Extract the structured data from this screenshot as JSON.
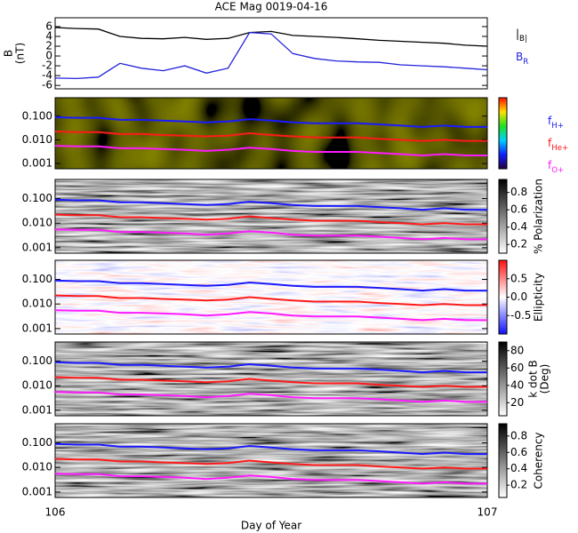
{
  "chart_data": [
    {
      "type": "line",
      "title": "ACE Mag 0019-04-16",
      "ylabel": "B",
      "ylabel_unit": "(nT)",
      "x": [
        106,
        106.05,
        106.1,
        106.15,
        106.2,
        106.25,
        106.3,
        106.35,
        106.4,
        106.45,
        106.5,
        106.55,
        106.6,
        106.65,
        106.7,
        106.75,
        106.8,
        106.85,
        106.9,
        106.95,
        107
      ],
      "xlim": [
        106,
        107
      ],
      "ylim": [
        -6.7,
        7.8
      ],
      "yticks": [
        -6,
        -4,
        -2,
        0,
        2,
        4,
        6
      ],
      "series": [
        {
          "name": "|B|",
          "color": "#000000",
          "values": [
            5.8,
            5.6,
            5.5,
            4.0,
            3.6,
            3.5,
            3.8,
            3.4,
            3.6,
            4.8,
            5.0,
            4.2,
            4.0,
            3.8,
            3.5,
            3.2,
            3.0,
            2.8,
            2.6,
            2.2,
            2.0
          ]
        },
        {
          "name": "BR",
          "color": "#2222dd",
          "values": [
            -4.5,
            -4.6,
            -4.3,
            -1.5,
            -2.5,
            -3.0,
            -2.0,
            -3.5,
            -2.5,
            4.8,
            4.5,
            0.5,
            -0.5,
            -1.0,
            -1.2,
            -1.3,
            -1.8,
            -2.0,
            -2.2,
            -2.5,
            -2.8
          ]
        }
      ]
    },
    {
      "type": "spectrogram",
      "log_y": true,
      "colormap": "rainbow",
      "x": [
        106,
        106.05,
        106.1,
        106.15,
        106.2,
        106.25,
        106.3,
        106.35,
        106.4,
        106.45,
        106.5,
        106.55,
        106.6,
        106.65,
        106.7,
        106.75,
        106.8,
        106.85,
        106.9,
        106.95,
        107
      ],
      "xlim": [
        106,
        107
      ],
      "ylim": [
        0.0006,
        0.6
      ],
      "yticks": [
        {
          "value": 0.001,
          "label": "0.001"
        },
        {
          "value": 0.01,
          "label": "0.010"
        },
        {
          "value": 0.1,
          "label": "0.100"
        }
      ],
      "series": [
        {
          "name": "fH+",
          "color": "#1a1aff",
          "values": [
            0.09,
            0.085,
            0.085,
            0.07,
            0.07,
            0.065,
            0.06,
            0.055,
            0.06,
            0.075,
            0.065,
            0.055,
            0.05,
            0.05,
            0.05,
            0.045,
            0.04,
            0.035,
            0.04,
            0.035,
            0.035
          ]
        },
        {
          "name": "fHe+",
          "color": "#ff1a1a",
          "values": [
            0.0225,
            0.021,
            0.021,
            0.0175,
            0.0175,
            0.016,
            0.015,
            0.014,
            0.015,
            0.019,
            0.016,
            0.014,
            0.0125,
            0.0125,
            0.0125,
            0.011,
            0.01,
            0.009,
            0.01,
            0.009,
            0.009
          ]
        },
        {
          "name": "fO+",
          "color": "#ff1aff",
          "values": [
            0.0056,
            0.0053,
            0.0053,
            0.0044,
            0.0044,
            0.0041,
            0.0038,
            0.0034,
            0.0038,
            0.0047,
            0.0041,
            0.0034,
            0.0031,
            0.0031,
            0.0031,
            0.0028,
            0.0025,
            0.0022,
            0.0025,
            0.0022,
            0.0022
          ]
        }
      ]
    },
    {
      "type": "spectrogram",
      "log_y": true,
      "colormap": "gray",
      "x": [
        106,
        106.05,
        106.1,
        106.15,
        106.2,
        106.25,
        106.3,
        106.35,
        106.4,
        106.45,
        106.5,
        106.55,
        106.6,
        106.65,
        106.7,
        106.75,
        106.8,
        106.85,
        106.9,
        106.95,
        107
      ],
      "xlim": [
        106,
        107
      ],
      "ylim": [
        0.0006,
        0.6
      ],
      "yticks": [
        {
          "value": 0.001,
          "label": "0.001"
        },
        {
          "value": 0.01,
          "label": "0.010"
        },
        {
          "value": 0.1,
          "label": "0.100"
        }
      ],
      "colorbar": {
        "label": [
          "% Polarization"
        ],
        "lim": [
          0.1,
          0.95
        ],
        "ticks": [
          0.2,
          0.4,
          0.6,
          0.8
        ]
      },
      "series": [
        {
          "color": "#1a1aff",
          "values": [
            0.09,
            0.085,
            0.085,
            0.07,
            0.07,
            0.065,
            0.06,
            0.055,
            0.06,
            0.075,
            0.065,
            0.055,
            0.05,
            0.05,
            0.05,
            0.045,
            0.04,
            0.035,
            0.04,
            0.035,
            0.035
          ]
        },
        {
          "color": "#ff1a1a",
          "values": [
            0.0225,
            0.021,
            0.021,
            0.0175,
            0.0175,
            0.016,
            0.015,
            0.014,
            0.015,
            0.019,
            0.016,
            0.014,
            0.0125,
            0.0125,
            0.0125,
            0.011,
            0.01,
            0.009,
            0.01,
            0.009,
            0.009
          ]
        },
        {
          "color": "#ff1aff",
          "values": [
            0.0056,
            0.0053,
            0.0053,
            0.0044,
            0.0044,
            0.0041,
            0.0038,
            0.0034,
            0.0038,
            0.0047,
            0.0041,
            0.0034,
            0.0031,
            0.0031,
            0.0031,
            0.0028,
            0.0025,
            0.0022,
            0.0025,
            0.0022,
            0.0022
          ]
        }
      ]
    },
    {
      "type": "spectrogram",
      "log_y": true,
      "colormap": "bwr",
      "x": [
        106,
        106.05,
        106.1,
        106.15,
        106.2,
        106.25,
        106.3,
        106.35,
        106.4,
        106.45,
        106.5,
        106.55,
        106.6,
        106.65,
        106.7,
        106.75,
        106.8,
        106.85,
        106.9,
        106.95,
        107
      ],
      "xlim": [
        106,
        107
      ],
      "ylim": [
        0.0006,
        0.6
      ],
      "yticks": [
        {
          "value": 0.001,
          "label": "0.001"
        },
        {
          "value": 0.01,
          "label": "0.010"
        },
        {
          "value": 0.1,
          "label": "0.100"
        }
      ],
      "colorbar": {
        "label": [
          "Ellipticity"
        ],
        "lim": [
          -1,
          1
        ],
        "ticks": [
          -0.5,
          {
            "value": 0,
            "label": "0.0"
          },
          0.5
        ]
      },
      "series": [
        {
          "color": "#1a1aff",
          "values": [
            0.09,
            0.085,
            0.085,
            0.07,
            0.07,
            0.065,
            0.06,
            0.055,
            0.06,
            0.075,
            0.065,
            0.055,
            0.05,
            0.05,
            0.05,
            0.045,
            0.04,
            0.035,
            0.04,
            0.035,
            0.035
          ]
        },
        {
          "color": "#ff1a1a",
          "values": [
            0.0225,
            0.021,
            0.021,
            0.0175,
            0.0175,
            0.016,
            0.015,
            0.014,
            0.015,
            0.019,
            0.016,
            0.014,
            0.0125,
            0.0125,
            0.0125,
            0.011,
            0.01,
            0.009,
            0.01,
            0.009,
            0.009
          ]
        },
        {
          "color": "#ff1aff",
          "values": [
            0.0056,
            0.0053,
            0.0053,
            0.0044,
            0.0044,
            0.0041,
            0.0038,
            0.0034,
            0.0038,
            0.0047,
            0.0041,
            0.0034,
            0.0031,
            0.0031,
            0.0031,
            0.0028,
            0.0025,
            0.0022,
            0.0025,
            0.0022,
            0.0022
          ]
        }
      ]
    },
    {
      "type": "spectrogram",
      "log_y": true,
      "colormap": "gray",
      "x": [
        106,
        106.05,
        106.1,
        106.15,
        106.2,
        106.25,
        106.3,
        106.35,
        106.4,
        106.45,
        106.5,
        106.55,
        106.6,
        106.65,
        106.7,
        106.75,
        106.8,
        106.85,
        106.9,
        106.95,
        107
      ],
      "xlim": [
        106,
        107
      ],
      "ylim": [
        0.0006,
        0.6
      ],
      "yticks": [
        {
          "value": 0.001,
          "label": "0.001"
        },
        {
          "value": 0.01,
          "label": "0.010"
        },
        {
          "value": 0.1,
          "label": "0.100"
        }
      ],
      "colorbar": {
        "label": [
          "k dot B",
          "(Deg)"
        ],
        "lim": [
          5,
          90
        ],
        "ticks": [
          20,
          40,
          60,
          80
        ]
      },
      "series": [
        {
          "color": "#1a1aff",
          "values": [
            0.09,
            0.085,
            0.085,
            0.07,
            0.07,
            0.065,
            0.06,
            0.055,
            0.06,
            0.075,
            0.065,
            0.055,
            0.05,
            0.05,
            0.05,
            0.045,
            0.04,
            0.035,
            0.04,
            0.035,
            0.035
          ]
        },
        {
          "color": "#ff1a1a",
          "values": [
            0.0225,
            0.021,
            0.021,
            0.0175,
            0.0175,
            0.016,
            0.015,
            0.014,
            0.015,
            0.019,
            0.016,
            0.014,
            0.0125,
            0.0125,
            0.0125,
            0.011,
            0.01,
            0.009,
            0.01,
            0.009,
            0.009
          ]
        },
        {
          "color": "#ff1aff",
          "values": [
            0.0056,
            0.0053,
            0.0053,
            0.0044,
            0.0044,
            0.0041,
            0.0038,
            0.0034,
            0.0038,
            0.0047,
            0.0041,
            0.0034,
            0.0031,
            0.0031,
            0.0031,
            0.0028,
            0.0025,
            0.0022,
            0.0025,
            0.0022,
            0.0022
          ]
        }
      ]
    },
    {
      "type": "spectrogram",
      "log_y": true,
      "colormap": "gray",
      "x": [
        106,
        106.05,
        106.1,
        106.15,
        106.2,
        106.25,
        106.3,
        106.35,
        106.4,
        106.45,
        106.5,
        106.55,
        106.6,
        106.65,
        106.7,
        106.75,
        106.8,
        106.85,
        106.9,
        106.95,
        107
      ],
      "xlim": [
        106,
        107
      ],
      "ylim": [
        0.0006,
        0.6
      ],
      "xticks": [
        106,
        107
      ],
      "xlabel": "Day of Year",
      "yticks": [
        {
          "value": 0.001,
          "label": "0.001"
        },
        {
          "value": 0.01,
          "label": "0.010"
        },
        {
          "value": 0.1,
          "label": "0.100"
        }
      ],
      "colorbar": {
        "label": [
          "Coherency"
        ],
        "lim": [
          0.05,
          0.95
        ],
        "ticks": [
          0.2,
          0.4,
          0.6,
          0.8
        ]
      },
      "series": [
        {
          "color": "#1a1aff",
          "values": [
            0.09,
            0.085,
            0.085,
            0.07,
            0.07,
            0.065,
            0.06,
            0.055,
            0.06,
            0.075,
            0.065,
            0.055,
            0.05,
            0.05,
            0.05,
            0.045,
            0.04,
            0.035,
            0.04,
            0.035,
            0.035
          ]
        },
        {
          "color": "#ff1a1a",
          "values": [
            0.0225,
            0.021,
            0.021,
            0.0175,
            0.0175,
            0.016,
            0.015,
            0.014,
            0.015,
            0.019,
            0.016,
            0.014,
            0.0125,
            0.0125,
            0.0125,
            0.011,
            0.01,
            0.009,
            0.01,
            0.009,
            0.009
          ]
        },
        {
          "color": "#ff1aff",
          "values": [
            0.0056,
            0.0053,
            0.0053,
            0.0044,
            0.0044,
            0.0041,
            0.0038,
            0.0034,
            0.0038,
            0.0047,
            0.0041,
            0.0034,
            0.0031,
            0.0031,
            0.0031,
            0.0028,
            0.0025,
            0.0022,
            0.0025,
            0.0022,
            0.0022
          ]
        }
      ]
    }
  ]
}
